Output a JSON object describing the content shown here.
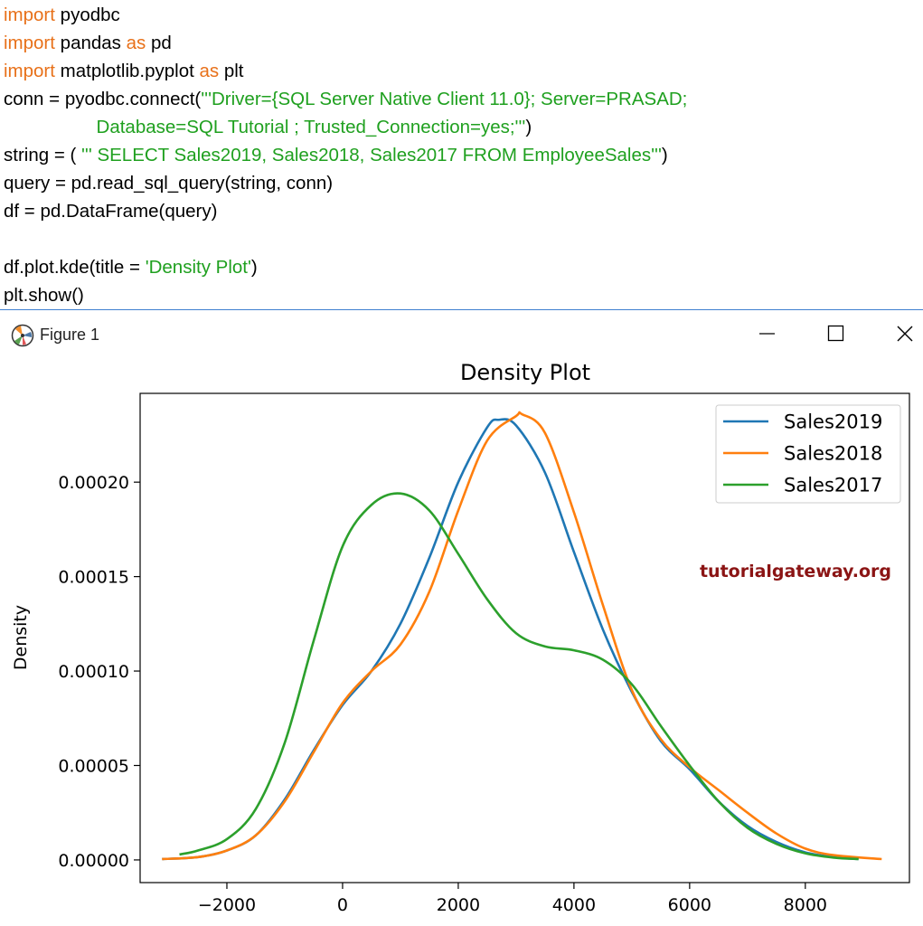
{
  "code": {
    "lines": [
      [
        {
          "t": "import",
          "k": "kw"
        },
        {
          "t": " pyodbc",
          "k": "plain"
        }
      ],
      [
        {
          "t": "import",
          "k": "kw"
        },
        {
          "t": " pandas ",
          "k": "plain"
        },
        {
          "t": "as",
          "k": "kw"
        },
        {
          "t": " pd",
          "k": "plain"
        }
      ],
      [
        {
          "t": "import",
          "k": "kw"
        },
        {
          "t": " matplotlib.pyplot ",
          "k": "plain"
        },
        {
          "t": "as",
          "k": "kw"
        },
        {
          "t": " plt",
          "k": "plain"
        }
      ],
      [
        {
          "t": "conn = pyodbc.connect(",
          "k": "plain"
        },
        {
          "t": "'''Driver={SQL Server Native Client 11.0}; Server=PRASAD;",
          "k": "str"
        }
      ],
      [
        {
          "t": "                  Database=SQL Tutorial ; Trusted_Connection=yes;'''",
          "k": "str"
        },
        {
          "t": ")",
          "k": "plain"
        }
      ],
      [
        {
          "t": "string = ( ",
          "k": "plain"
        },
        {
          "t": "''' SELECT Sales2019, Sales2018, Sales2017 FROM EmployeeSales'''",
          "k": "str"
        },
        {
          "t": ")",
          "k": "plain"
        }
      ],
      [
        {
          "t": "query = pd.read_sql_query(string, conn)",
          "k": "plain"
        }
      ],
      [
        {
          "t": "df = pd.DataFrame(query)",
          "k": "plain"
        }
      ],
      [],
      [
        {
          "t": "df.plot.kde(title = ",
          "k": "plain"
        },
        {
          "t": "'Density Plot'",
          "k": "str"
        },
        {
          "t": ")",
          "k": "plain"
        }
      ],
      [
        {
          "t": "plt.show()",
          "k": "plain"
        }
      ]
    ]
  },
  "window": {
    "title": "Figure 1",
    "icon": "matplotlib-icon",
    "controls": [
      "minimize-icon",
      "maximize-icon",
      "close-icon"
    ]
  },
  "watermark": "tutorialgateway.org",
  "colors": {
    "keyword": "#e8711a",
    "string": "#1fa01f",
    "Sales2019": "#1f77b4",
    "Sales2018": "#ff7f0e",
    "Sales2017": "#2ca02c",
    "watermark": "#8b1414"
  },
  "chart_data": {
    "type": "line",
    "title": "Density Plot",
    "xlabel": "",
    "ylabel": "Density",
    "xlim": [
      -3500,
      9800
    ],
    "ylim": [
      -1.2e-05,
      0.000247
    ],
    "xticks": [
      -2000,
      0,
      2000,
      4000,
      6000,
      8000
    ],
    "xtick_labels": [
      "−2000",
      "0",
      "2000",
      "4000",
      "6000",
      "8000"
    ],
    "yticks": [
      0.0,
      5e-05,
      0.0001,
      0.00015,
      0.0002
    ],
    "ytick_labels": [
      "0.00000",
      "0.00005",
      "0.00010",
      "0.00015",
      "0.00020"
    ],
    "grid": false,
    "legend_position": "top-right",
    "series": [
      {
        "name": "Sales2019",
        "color": "#1f77b4",
        "x": [
          -3100,
          -2500,
          -2000,
          -1500,
          -1000,
          -500,
          0,
          500,
          1000,
          1500,
          2000,
          2500,
          2700,
          3000,
          3500,
          4000,
          4500,
          5000,
          5500,
          6000,
          6500,
          7000,
          7500,
          8000,
          8500,
          8900
        ],
        "y": [
          5e-07,
          1.5e-06,
          5e-06,
          1.3e-05,
          3.2e-05,
          5.8e-05,
          8.2e-05,
          0.0001,
          0.000125,
          0.00016,
          0.0002,
          0.000229,
          0.000233,
          0.00023,
          0.000205,
          0.000163,
          0.000122,
          8.9e-05,
          6.3e-05,
          4.8e-05,
          3.1e-05,
          1.8e-05,
          9.5e-06,
          4e-06,
          1.5e-06,
          5e-07
        ]
      },
      {
        "name": "Sales2018",
        "color": "#ff7f0e",
        "x": [
          -3100,
          -2500,
          -2000,
          -1500,
          -1000,
          -500,
          0,
          500,
          1000,
          1500,
          2000,
          2500,
          3000,
          3100,
          3500,
          4000,
          4500,
          5000,
          5500,
          6000,
          6500,
          7000,
          7500,
          8000,
          8500,
          9300
        ],
        "y": [
          5e-07,
          1.5e-06,
          5e-06,
          1.3e-05,
          3.1e-05,
          5.7e-05,
          8.3e-05,
          0.0001,
          0.000114,
          0.000142,
          0.000185,
          0.000222,
          0.000235,
          0.000236,
          0.000226,
          0.000184,
          0.000135,
          9e-05,
          6.4e-05,
          4.9e-05,
          3.7e-05,
          2.5e-05,
          1.4e-05,
          6e-06,
          2.5e-06,
          5e-07
        ]
      },
      {
        "name": "Sales2017",
        "color": "#2ca02c",
        "x": [
          -2800,
          -2500,
          -2000,
          -1500,
          -1000,
          -500,
          0,
          500,
          1000,
          1500,
          2000,
          2500,
          3000,
          3500,
          4000,
          4500,
          5000,
          5500,
          6000,
          6500,
          7000,
          7500,
          8000,
          8500,
          8900
        ],
        "y": [
          3e-06,
          5e-06,
          1.1e-05,
          2.7e-05,
          6.2e-05,
          0.000116,
          0.000166,
          0.000188,
          0.000194,
          0.000185,
          0.000162,
          0.000138,
          0.00012,
          0.000113,
          0.000111,
          0.000106,
          9.3e-05,
          7.1e-05,
          5e-05,
          3.1e-05,
          1.7e-05,
          8.5e-06,
          3.5e-06,
          1.2e-06,
          5e-07
        ]
      }
    ]
  }
}
